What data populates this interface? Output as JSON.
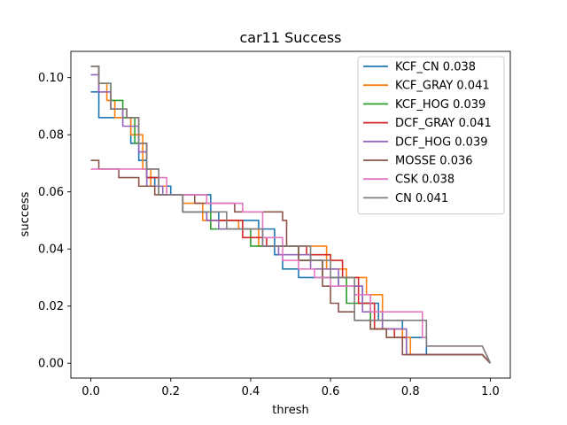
{
  "chart_data": {
    "type": "line",
    "title": "car11 Success",
    "xlabel": "thresh",
    "ylabel": "success",
    "xlim": [
      -0.05,
      1.05
    ],
    "ylim": [
      -0.0052,
      0.1092
    ],
    "xticks": [
      0.0,
      0.2,
      0.4,
      0.6,
      0.8,
      1.0
    ],
    "xtick_labels": [
      "0.0",
      "0.2",
      "0.4",
      "0.6",
      "0.8",
      "1.0"
    ],
    "yticks": [
      0.0,
      0.02,
      0.04,
      0.06,
      0.08,
      0.1
    ],
    "ytick_labels": [
      "0.00",
      "0.02",
      "0.04",
      "0.06",
      "0.08",
      "0.10"
    ],
    "grid": false,
    "legend_position": "top-right",
    "series": [
      {
        "name": "KCF_CN 0.038",
        "color": "#1f77b4",
        "x": [
          0.0,
          0.02,
          0.02,
          0.04,
          0.04,
          0.06,
          0.06,
          0.08,
          0.08,
          0.1,
          0.1,
          0.12,
          0.12,
          0.14,
          0.14,
          0.16,
          0.16,
          0.2,
          0.2,
          0.3,
          0.3,
          0.32,
          0.32,
          0.38,
          0.38,
          0.42,
          0.42,
          0.46,
          0.46,
          0.48,
          0.48,
          0.52,
          0.52,
          0.58,
          0.58,
          0.62,
          0.62,
          0.68,
          0.68,
          0.72,
          0.72,
          0.78,
          0.78,
          0.84,
          0.84,
          0.98,
          0.98,
          1.0
        ],
        "y": [
          0.095,
          0.095,
          0.086,
          0.086,
          0.086,
          0.086,
          0.086,
          0.086,
          0.086,
          0.086,
          0.077,
          0.077,
          0.071,
          0.071,
          0.065,
          0.065,
          0.062,
          0.062,
          0.059,
          0.059,
          0.053,
          0.053,
          0.05,
          0.05,
          0.05,
          0.05,
          0.047,
          0.047,
          0.038,
          0.038,
          0.033,
          0.033,
          0.03,
          0.03,
          0.03,
          0.03,
          0.027,
          0.027,
          0.021,
          0.021,
          0.015,
          0.015,
          0.009,
          0.009,
          0.003,
          0.003,
          0.003,
          0.0
        ]
      },
      {
        "name": "KCF_GRAY 0.041",
        "color": "#ff7f0e",
        "x": [
          0.0,
          0.02,
          0.02,
          0.04,
          0.04,
          0.06,
          0.06,
          0.1,
          0.1,
          0.13,
          0.13,
          0.15,
          0.15,
          0.19,
          0.19,
          0.23,
          0.23,
          0.28,
          0.28,
          0.37,
          0.37,
          0.42,
          0.42,
          0.46,
          0.46,
          0.52,
          0.52,
          0.59,
          0.59,
          0.64,
          0.64,
          0.69,
          0.69,
          0.73,
          0.73,
          0.78,
          0.78,
          0.8,
          0.8,
          0.98,
          0.98,
          1.0
        ],
        "y": [
          0.104,
          0.104,
          0.098,
          0.098,
          0.092,
          0.092,
          0.086,
          0.086,
          0.08,
          0.08,
          0.068,
          0.068,
          0.062,
          0.062,
          0.059,
          0.059,
          0.056,
          0.056,
          0.05,
          0.05,
          0.047,
          0.047,
          0.041,
          0.041,
          0.041,
          0.041,
          0.041,
          0.041,
          0.033,
          0.033,
          0.03,
          0.03,
          0.024,
          0.024,
          0.012,
          0.012,
          0.009,
          0.009,
          0.003,
          0.003,
          0.003,
          0.0
        ]
      },
      {
        "name": "KCF_HOG 0.039",
        "color": "#2ca02c",
        "x": [
          0.0,
          0.02,
          0.02,
          0.05,
          0.05,
          0.08,
          0.08,
          0.11,
          0.11,
          0.14,
          0.14,
          0.17,
          0.17,
          0.23,
          0.23,
          0.3,
          0.3,
          0.4,
          0.4,
          0.44,
          0.44,
          0.52,
          0.52,
          0.58,
          0.58,
          0.64,
          0.64,
          0.7,
          0.7,
          0.74,
          0.74,
          0.79,
          0.79,
          0.98,
          0.98,
          1.0
        ],
        "y": [
          0.104,
          0.104,
          0.098,
          0.098,
          0.092,
          0.092,
          0.086,
          0.086,
          0.077,
          0.077,
          0.065,
          0.065,
          0.059,
          0.059,
          0.053,
          0.053,
          0.047,
          0.047,
          0.041,
          0.041,
          0.041,
          0.041,
          0.036,
          0.036,
          0.03,
          0.03,
          0.021,
          0.021,
          0.012,
          0.012,
          0.009,
          0.009,
          0.003,
          0.003,
          0.003,
          0.0
        ]
      },
      {
        "name": "DCF_GRAY 0.041",
        "color": "#d62728",
        "x": [
          0.0,
          0.02,
          0.02,
          0.05,
          0.05,
          0.09,
          0.09,
          0.12,
          0.12,
          0.14,
          0.14,
          0.17,
          0.17,
          0.23,
          0.23,
          0.29,
          0.29,
          0.38,
          0.38,
          0.44,
          0.44,
          0.54,
          0.54,
          0.6,
          0.6,
          0.63,
          0.63,
          0.67,
          0.67,
          0.71,
          0.71,
          0.76,
          0.76,
          0.79,
          0.79,
          0.98,
          0.98,
          1.0
        ],
        "y": [
          0.104,
          0.104,
          0.095,
          0.095,
          0.089,
          0.089,
          0.086,
          0.086,
          0.077,
          0.077,
          0.065,
          0.065,
          0.059,
          0.059,
          0.053,
          0.053,
          0.05,
          0.05,
          0.044,
          0.044,
          0.041,
          0.041,
          0.038,
          0.038,
          0.036,
          0.036,
          0.03,
          0.03,
          0.021,
          0.021,
          0.012,
          0.012,
          0.009,
          0.009,
          0.003,
          0.003,
          0.003,
          0.0
        ]
      },
      {
        "name": "DCF_HOG 0.039",
        "color": "#9467bd",
        "x": [
          0.0,
          0.02,
          0.02,
          0.05,
          0.05,
          0.08,
          0.08,
          0.12,
          0.12,
          0.14,
          0.14,
          0.18,
          0.18,
          0.23,
          0.23,
          0.29,
          0.29,
          0.32,
          0.32,
          0.43,
          0.43,
          0.47,
          0.47,
          0.55,
          0.55,
          0.62,
          0.62,
          0.68,
          0.68,
          0.73,
          0.73,
          0.79,
          0.79,
          0.98,
          0.98,
          1.0
        ],
        "y": [
          0.101,
          0.101,
          0.095,
          0.095,
          0.089,
          0.089,
          0.083,
          0.083,
          0.074,
          0.074,
          0.062,
          0.062,
          0.059,
          0.059,
          0.053,
          0.053,
          0.05,
          0.05,
          0.047,
          0.047,
          0.041,
          0.041,
          0.038,
          0.038,
          0.033,
          0.033,
          0.027,
          0.027,
          0.018,
          0.018,
          0.012,
          0.012,
          0.003,
          0.003,
          0.003,
          0.0
        ]
      },
      {
        "name": "MOSSE 0.036",
        "color": "#8c564b",
        "x": [
          0.0,
          0.02,
          0.02,
          0.04,
          0.04,
          0.07,
          0.07,
          0.12,
          0.12,
          0.16,
          0.16,
          0.22,
          0.22,
          0.26,
          0.26,
          0.36,
          0.36,
          0.42,
          0.42,
          0.48,
          0.48,
          0.49,
          0.49,
          0.52,
          0.52,
          0.58,
          0.58,
          0.6,
          0.6,
          0.62,
          0.62,
          0.66,
          0.66,
          0.7,
          0.7,
          0.74,
          0.74,
          0.78,
          0.78,
          0.98,
          0.98,
          1.0
        ],
        "y": [
          0.071,
          0.071,
          0.068,
          0.068,
          0.068,
          0.068,
          0.065,
          0.065,
          0.062,
          0.062,
          0.059,
          0.059,
          0.059,
          0.059,
          0.056,
          0.056,
          0.053,
          0.053,
          0.053,
          0.053,
          0.05,
          0.05,
          0.041,
          0.041,
          0.036,
          0.036,
          0.027,
          0.027,
          0.021,
          0.021,
          0.018,
          0.018,
          0.015,
          0.015,
          0.012,
          0.012,
          0.009,
          0.009,
          0.003,
          0.003,
          0.003,
          0.0
        ]
      },
      {
        "name": "CSK 0.038",
        "color": "#e377c2",
        "x": [
          0.0,
          0.05,
          0.05,
          0.12,
          0.12,
          0.17,
          0.17,
          0.19,
          0.19,
          0.29,
          0.29,
          0.38,
          0.38,
          0.43,
          0.43,
          0.48,
          0.48,
          0.52,
          0.52,
          0.56,
          0.56,
          0.6,
          0.6,
          0.66,
          0.66,
          0.7,
          0.7,
          0.74,
          0.74,
          0.83,
          0.83,
          0.84,
          0.84,
          0.98,
          0.98,
          1.0
        ],
        "y": [
          0.068,
          0.068,
          0.068,
          0.068,
          0.068,
          0.068,
          0.065,
          0.065,
          0.059,
          0.059,
          0.056,
          0.056,
          0.053,
          0.053,
          0.044,
          0.044,
          0.036,
          0.036,
          0.033,
          0.033,
          0.03,
          0.03,
          0.027,
          0.027,
          0.024,
          0.024,
          0.018,
          0.018,
          0.018,
          0.018,
          0.009,
          0.009,
          0.006,
          0.006,
          0.006,
          0.0
        ]
      },
      {
        "name": "CN 0.041",
        "color": "#7f7f7f",
        "x": [
          0.0,
          0.02,
          0.02,
          0.05,
          0.05,
          0.09,
          0.09,
          0.12,
          0.12,
          0.14,
          0.14,
          0.17,
          0.17,
          0.23,
          0.23,
          0.3,
          0.3,
          0.34,
          0.34,
          0.43,
          0.43,
          0.48,
          0.48,
          0.55,
          0.55,
          0.6,
          0.6,
          0.66,
          0.66,
          0.72,
          0.72,
          0.84,
          0.84,
          0.98,
          0.98,
          1.0
        ],
        "y": [
          0.104,
          0.104,
          0.098,
          0.098,
          0.089,
          0.089,
          0.086,
          0.086,
          0.077,
          0.077,
          0.068,
          0.068,
          0.059,
          0.059,
          0.053,
          0.053,
          0.053,
          0.053,
          0.047,
          0.047,
          0.041,
          0.041,
          0.041,
          0.041,
          0.036,
          0.036,
          0.03,
          0.03,
          0.015,
          0.015,
          0.015,
          0.015,
          0.006,
          0.006,
          0.006,
          0.0
        ]
      }
    ]
  }
}
